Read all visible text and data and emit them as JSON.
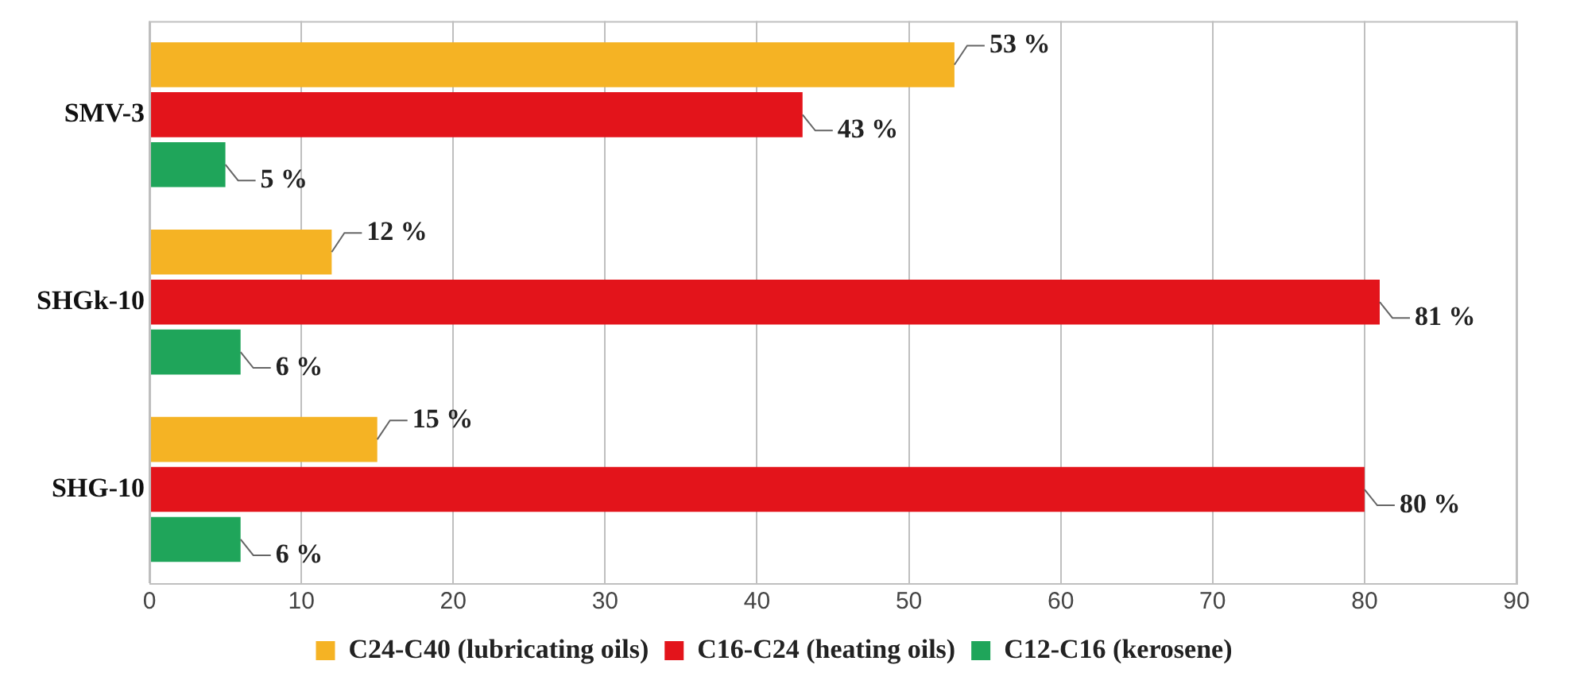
{
  "chart_data": {
    "type": "bar",
    "orientation": "horizontal",
    "categories": [
      "SMV-3",
      "SHGk-10",
      "SHG-10"
    ],
    "series": [
      {
        "name": "C24-C40 (lubricating oils)",
        "color": "#f5b324",
        "values": [
          53,
          12,
          15
        ],
        "value_labels": [
          "53 %",
          "12 %",
          "15 %"
        ]
      },
      {
        "name": "C16-C24 (heating oils)",
        "color": "#e3141b",
        "values": [
          43,
          81,
          80
        ],
        "value_labels": [
          "43 %",
          "81 %",
          "80 %"
        ]
      },
      {
        "name": "C12-C16 (kerosene)",
        "color": "#1fa55a",
        "values": [
          5,
          6,
          6
        ],
        "value_labels": [
          "5 %",
          "6 %",
          "6 %"
        ]
      }
    ],
    "xlim": [
      0,
      90
    ],
    "xticks": [
      0,
      10,
      20,
      30,
      40,
      50,
      60,
      70,
      80,
      90
    ],
    "grid": "x",
    "legend": "bottom"
  }
}
